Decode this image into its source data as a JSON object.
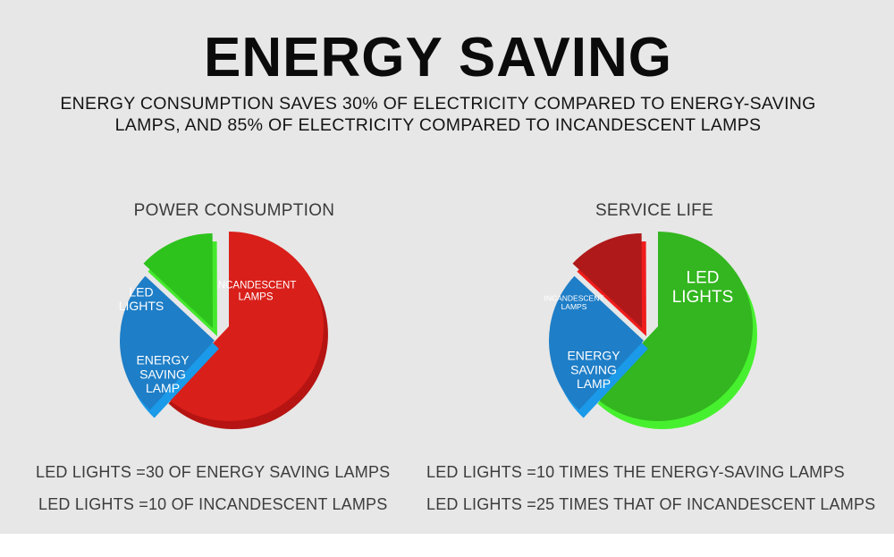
{
  "title": "ENERGY SAVING",
  "subtitle_line1": "ENERGY CONSUMPTION SAVES 30% OF ELECTRICITY COMPARED TO ENERGY-SAVING",
  "subtitle_line2": "LAMPS, AND 85% OF ELECTRICITY COMPARED TO INCANDESCENT LAMPS",
  "chart_data": [
    {
      "type": "pie",
      "title": "POWER CONSUMPTION",
      "slices": [
        {
          "label": "INCANDESCENT LAMPS",
          "lines": [
            "INCANDESCENT",
            "LAMPS"
          ],
          "value": 0.62,
          "color": "#d91f1a",
          "side": "#b51412"
        },
        {
          "label": "ENERGY SAVING LAMP",
          "lines": [
            "ENERGY",
            "SAVING",
            "LAMP"
          ],
          "value": 0.25,
          "color": "#1e7ec7",
          "side": "#1a9ae8"
        },
        {
          "label": "LED LIGHTS",
          "lines": [
            "LED",
            "LIGHTS"
          ],
          "value": 0.13,
          "color": "#2ec21d",
          "side": "#44e82c"
        }
      ]
    },
    {
      "type": "pie",
      "title": "SERVICE LIFE",
      "slices": [
        {
          "label": "LED LIGHTS",
          "lines": [
            "LED",
            "LIGHTS"
          ],
          "value": 0.62,
          "color": "#33b61f",
          "side": "#47f02e"
        },
        {
          "label": "ENERGY SAVING LAMP",
          "lines": [
            "ENERGY",
            "SAVING",
            "LAMP"
          ],
          "value": 0.25,
          "color": "#1e7ec7",
          "side": "#1a9ae8"
        },
        {
          "label": "INCANDESCENT LAMPS",
          "lines": [
            "INCANDESCENT",
            "LAMPS"
          ],
          "value": 0.13,
          "color": "#b0191a",
          "side": "#f01c1c"
        }
      ]
    }
  ],
  "notes": {
    "left1": "LED LIGHTS =30 OF ENERGY SAVING LAMPS",
    "left2": "LED LIGHTS =10 OF INCANDESCENT LAMPS",
    "right1": "LED LIGHTS =10 TIMES THE ENERGY-SAVING LAMPS",
    "right2": "LED LIGHTS =25 TIMES THAT OF INCANDESCENT LAMPS"
  }
}
